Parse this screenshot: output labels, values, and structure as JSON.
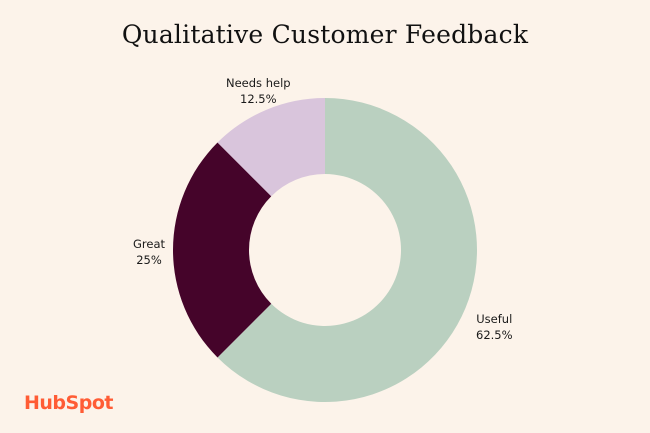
{
  "chart_data": {
    "type": "pie",
    "title": "Qualitative Customer Feedback",
    "donut": true,
    "slices": [
      {
        "label": "Useful",
        "value": 62.5,
        "value_label": "62.5%",
        "color": "#bad0c0"
      },
      {
        "label": "Great",
        "value": 25,
        "value_label": "25%",
        "color": "#45042a"
      },
      {
        "label": "Needs help",
        "value": 12.5,
        "value_label": "12.5%",
        "color": "#d9c5dc"
      }
    ]
  },
  "brand": {
    "logo_text": "HubSpot",
    "color": "#ff5c35"
  }
}
